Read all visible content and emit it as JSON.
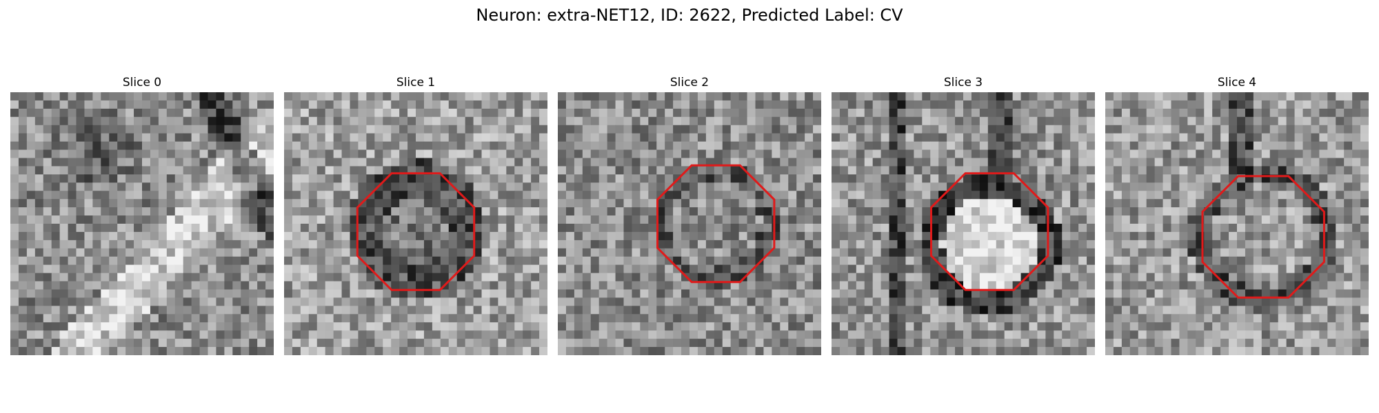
{
  "title": "Neuron: extra-NET12, ID: 2622, Predicted Label: CV",
  "panels": [
    {
      "label": "Slice 0",
      "has_marker": false,
      "seed": 11
    },
    {
      "label": "Slice 1",
      "has_marker": true,
      "seed": 23
    },
    {
      "label": "Slice 2",
      "has_marker": true,
      "seed": 37
    },
    {
      "label": "Slice 3",
      "has_marker": true,
      "seed": 53
    },
    {
      "label": "Slice 4",
      "has_marker": true,
      "seed": 71
    }
  ],
  "colors": {
    "marker": "#e01a1a"
  },
  "grid_cells": 32
}
